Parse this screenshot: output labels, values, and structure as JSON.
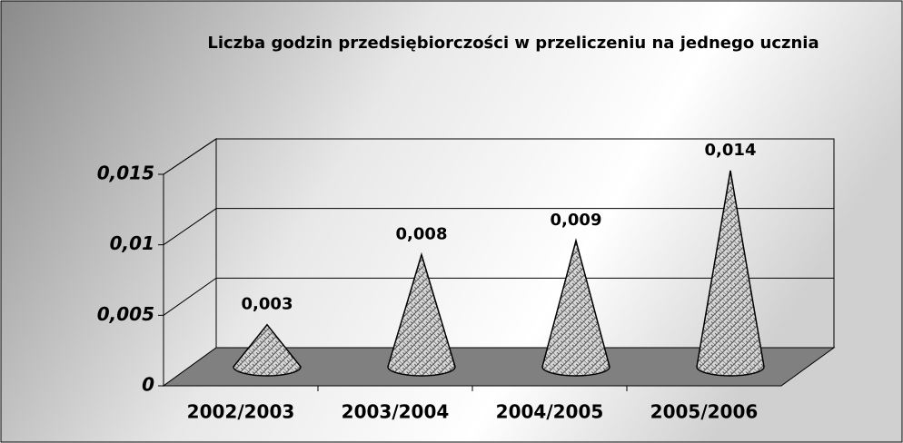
{
  "chart_data": {
    "type": "cone3d",
    "title": "Liczba godzin przedsiębiorczości w przeliczeniu na jednego ucznia",
    "categories": [
      "2002/2003",
      "2003/2004",
      "2004/2005",
      "2005/2006"
    ],
    "values": [
      0.003,
      0.008,
      0.009,
      0.014
    ],
    "value_labels": [
      "0,003",
      "0,008",
      "0,009",
      "0,014"
    ],
    "ylim": [
      0,
      0.015
    ],
    "yticks": [
      0,
      {
        "value": 0.005,
        "label": "0,005"
      },
      {
        "value": 0.01,
        "label": "0,01"
      },
      {
        "value": 0.015,
        "label": "0,015"
      }
    ],
    "grid": true,
    "color": "#b0b0b0",
    "floor_color": "#808080"
  }
}
